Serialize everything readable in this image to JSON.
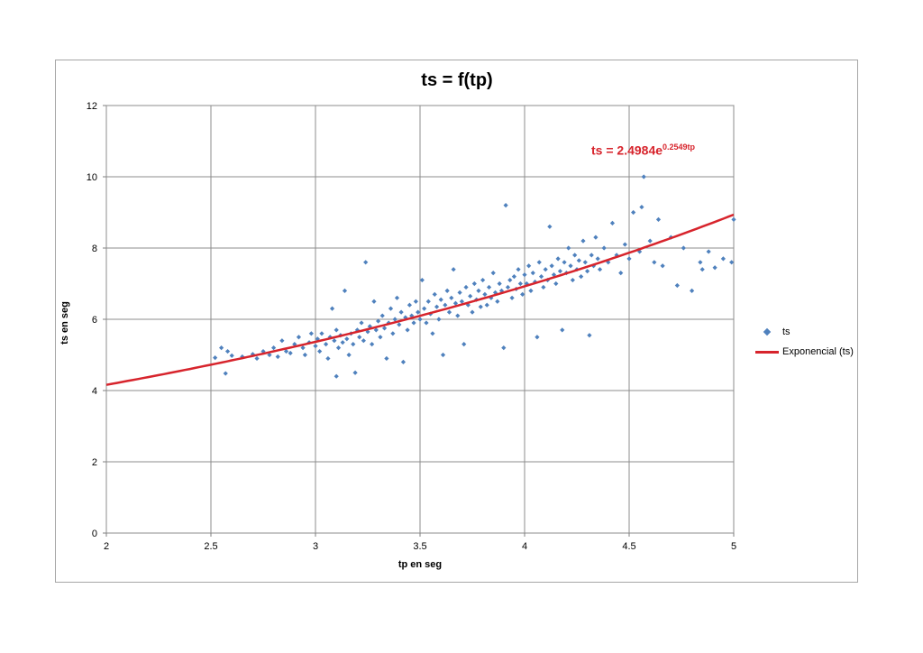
{
  "chart_data": {
    "type": "scatter",
    "title": "ts = f(tp)",
    "xlabel": "tp en seg",
    "ylabel": "ts en seg",
    "xlim": [
      2,
      5
    ],
    "ylim": [
      0,
      12
    ],
    "xticks": [
      2,
      2.5,
      3,
      3.5,
      4,
      4.5,
      5
    ],
    "xtick_labels": [
      "2",
      "2.5",
      "3",
      "3.5",
      "4",
      "4.5",
      "5"
    ],
    "yticks": [
      0,
      2,
      4,
      6,
      8,
      10,
      12
    ],
    "ytick_labels": [
      "0",
      "2",
      "4",
      "6",
      "8",
      "10",
      "12"
    ],
    "grid": true,
    "legend_position": "right",
    "series": [
      {
        "name": "ts",
        "kind": "scatter",
        "color": "#4f81bd",
        "points": [
          [
            2.52,
            4.92
          ],
          [
            2.55,
            5.2
          ],
          [
            2.57,
            4.48
          ],
          [
            2.58,
            5.1
          ],
          [
            2.6,
            4.98
          ],
          [
            2.65,
            4.95
          ],
          [
            2.7,
            5.02
          ],
          [
            2.72,
            4.9
          ],
          [
            2.75,
            5.1
          ],
          [
            2.78,
            5.0
          ],
          [
            2.8,
            5.2
          ],
          [
            2.82,
            4.95
          ],
          [
            2.84,
            5.4
          ],
          [
            2.86,
            5.1
          ],
          [
            2.88,
            5.05
          ],
          [
            2.9,
            5.3
          ],
          [
            2.92,
            5.5
          ],
          [
            2.94,
            5.2
          ],
          [
            2.95,
            5.0
          ],
          [
            2.97,
            5.35
          ],
          [
            2.98,
            5.6
          ],
          [
            3.0,
            5.25
          ],
          [
            3.01,
            5.45
          ],
          [
            3.02,
            5.1
          ],
          [
            3.03,
            5.6
          ],
          [
            3.05,
            5.3
          ],
          [
            3.06,
            4.9
          ],
          [
            3.07,
            5.5
          ],
          [
            3.08,
            6.3
          ],
          [
            3.09,
            5.4
          ],
          [
            3.1,
            4.4
          ],
          [
            3.1,
            5.7
          ],
          [
            3.11,
            5.2
          ],
          [
            3.12,
            5.55
          ],
          [
            3.13,
            5.35
          ],
          [
            3.14,
            6.8
          ],
          [
            3.15,
            5.45
          ],
          [
            3.16,
            5.0
          ],
          [
            3.17,
            5.6
          ],
          [
            3.18,
            5.3
          ],
          [
            3.19,
            4.5
          ],
          [
            3.2,
            5.7
          ],
          [
            3.21,
            5.5
          ],
          [
            3.22,
            5.9
          ],
          [
            3.23,
            5.4
          ],
          [
            3.24,
            7.6
          ],
          [
            3.25,
            5.65
          ],
          [
            3.26,
            5.8
          ],
          [
            3.27,
            5.3
          ],
          [
            3.28,
            6.5
          ],
          [
            3.29,
            5.7
          ],
          [
            3.3,
            5.95
          ],
          [
            3.31,
            5.5
          ],
          [
            3.32,
            6.1
          ],
          [
            3.33,
            5.75
          ],
          [
            3.34,
            4.9
          ],
          [
            3.35,
            5.9
          ],
          [
            3.36,
            6.3
          ],
          [
            3.37,
            5.6
          ],
          [
            3.38,
            6.0
          ],
          [
            3.39,
            6.6
          ],
          [
            3.4,
            5.85
          ],
          [
            3.41,
            6.2
          ],
          [
            3.42,
            4.8
          ],
          [
            3.43,
            6.05
          ],
          [
            3.44,
            5.7
          ],
          [
            3.45,
            6.4
          ],
          [
            3.46,
            6.1
          ],
          [
            3.47,
            5.9
          ],
          [
            3.48,
            6.5
          ],
          [
            3.49,
            6.2
          ],
          [
            3.5,
            6.0
          ],
          [
            3.51,
            7.1
          ],
          [
            3.52,
            6.3
          ],
          [
            3.53,
            5.9
          ],
          [
            3.54,
            6.5
          ],
          [
            3.55,
            6.15
          ],
          [
            3.56,
            5.6
          ],
          [
            3.57,
            6.7
          ],
          [
            3.58,
            6.35
          ],
          [
            3.59,
            6.0
          ],
          [
            3.6,
            6.55
          ],
          [
            3.61,
            5.0
          ],
          [
            3.62,
            6.4
          ],
          [
            3.63,
            6.8
          ],
          [
            3.64,
            6.2
          ],
          [
            3.65,
            6.6
          ],
          [
            3.66,
            7.4
          ],
          [
            3.67,
            6.45
          ],
          [
            3.68,
            6.1
          ],
          [
            3.69,
            6.75
          ],
          [
            3.7,
            6.5
          ],
          [
            3.71,
            5.3
          ],
          [
            3.72,
            6.9
          ],
          [
            3.73,
            6.4
          ],
          [
            3.74,
            6.65
          ],
          [
            3.75,
            6.2
          ],
          [
            3.76,
            7.0
          ],
          [
            3.77,
            6.55
          ],
          [
            3.78,
            6.8
          ],
          [
            3.79,
            6.35
          ],
          [
            3.8,
            7.1
          ],
          [
            3.81,
            6.7
          ],
          [
            3.82,
            6.4
          ],
          [
            3.83,
            6.9
          ],
          [
            3.84,
            6.6
          ],
          [
            3.85,
            7.3
          ],
          [
            3.86,
            6.75
          ],
          [
            3.87,
            6.5
          ],
          [
            3.88,
            7.0
          ],
          [
            3.89,
            6.8
          ],
          [
            3.9,
            5.2
          ],
          [
            3.91,
            9.2
          ],
          [
            3.92,
            6.9
          ],
          [
            3.93,
            7.1
          ],
          [
            3.94,
            6.6
          ],
          [
            3.95,
            7.2
          ],
          [
            3.96,
            6.85
          ],
          [
            3.97,
            7.4
          ],
          [
            3.98,
            7.0
          ],
          [
            3.99,
            6.7
          ],
          [
            4.0,
            7.25
          ],
          [
            4.01,
            7.0
          ],
          [
            4.02,
            7.5
          ],
          [
            4.03,
            6.8
          ],
          [
            4.04,
            7.3
          ],
          [
            4.05,
            7.05
          ],
          [
            4.06,
            5.5
          ],
          [
            4.07,
            7.6
          ],
          [
            4.08,
            7.2
          ],
          [
            4.09,
            6.9
          ],
          [
            4.1,
            7.4
          ],
          [
            4.11,
            7.1
          ],
          [
            4.12,
            8.6
          ],
          [
            4.13,
            7.5
          ],
          [
            4.14,
            7.25
          ],
          [
            4.15,
            7.0
          ],
          [
            4.16,
            7.7
          ],
          [
            4.17,
            7.35
          ],
          [
            4.18,
            5.7
          ],
          [
            4.19,
            7.6
          ],
          [
            4.2,
            7.3
          ],
          [
            4.21,
            8.0
          ],
          [
            4.22,
            7.5
          ],
          [
            4.23,
            7.1
          ],
          [
            4.24,
            7.8
          ],
          [
            4.25,
            7.4
          ],
          [
            4.26,
            7.65
          ],
          [
            4.27,
            7.2
          ],
          [
            4.28,
            8.2
          ],
          [
            4.29,
            7.6
          ],
          [
            4.3,
            7.35
          ],
          [
            4.31,
            5.55
          ],
          [
            4.32,
            7.8
          ],
          [
            4.33,
            7.5
          ],
          [
            4.34,
            8.3
          ],
          [
            4.35,
            7.7
          ],
          [
            4.36,
            7.4
          ],
          [
            4.38,
            8.0
          ],
          [
            4.4,
            7.6
          ],
          [
            4.42,
            8.7
          ],
          [
            4.44,
            7.8
          ],
          [
            4.46,
            7.3
          ],
          [
            4.48,
            8.1
          ],
          [
            4.5,
            7.7
          ],
          [
            4.52,
            9.0
          ],
          [
            4.55,
            7.9
          ],
          [
            4.56,
            9.15
          ],
          [
            4.57,
            10.0
          ],
          [
            4.6,
            8.2
          ],
          [
            4.62,
            7.6
          ],
          [
            4.64,
            8.8
          ],
          [
            4.66,
            7.5
          ],
          [
            4.7,
            8.3
          ],
          [
            4.73,
            6.95
          ],
          [
            4.76,
            8.0
          ],
          [
            4.8,
            6.8
          ],
          [
            4.84,
            7.6
          ],
          [
            4.88,
            7.9
          ],
          [
            4.91,
            7.45
          ],
          [
            4.95,
            7.7
          ],
          [
            4.99,
            7.6
          ],
          [
            5.0,
            8.8
          ],
          [
            4.85,
            7.4
          ]
        ]
      },
      {
        "name": "Exponencial (ts)",
        "kind": "trendline",
        "color": "#d7242c",
        "formula": {
          "a": 2.4984,
          "b": 0.2549
        }
      }
    ],
    "annotation": {
      "prefix": "ts = 2.4984e",
      "exponent": "0.2549tp"
    }
  }
}
